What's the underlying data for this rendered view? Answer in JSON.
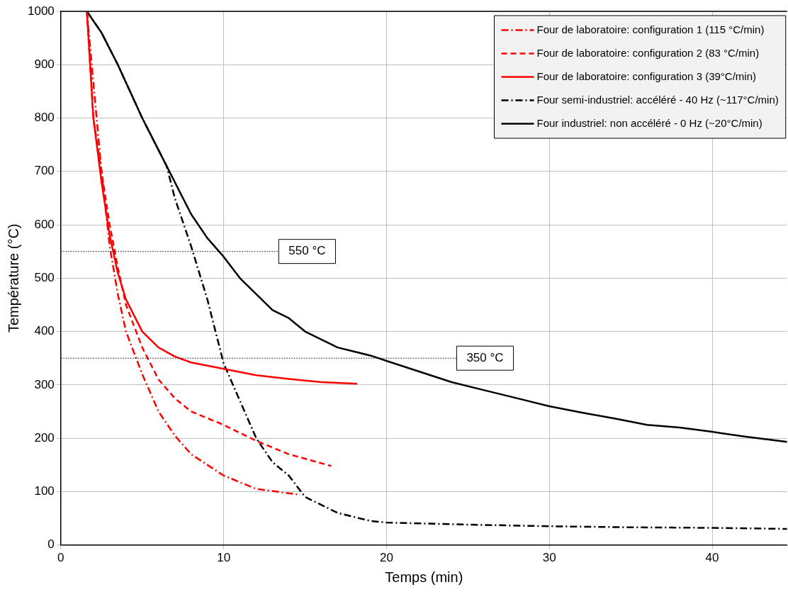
{
  "chart_data": {
    "type": "line",
    "xlabel": "Temps (min)",
    "ylabel": "Température (°C)",
    "xlim": [
      0,
      44.6
    ],
    "xticks": [
      0,
      10,
      20,
      30,
      40
    ],
    "ylim": [
      0,
      1000
    ],
    "yticks": [
      0,
      100,
      200,
      300,
      400,
      500,
      600,
      700,
      800,
      900,
      1000
    ],
    "grid": true,
    "legend": "top right",
    "marker": "none",
    "series": [
      {
        "name": "Four de laboratoire: configuration 1 (115 °C/min)",
        "color": "#ff0000",
        "line_style": "dashdot",
        "x": [
          1.6,
          2.5,
          3,
          3.5,
          4,
          5,
          6,
          7,
          8,
          10,
          12,
          14.7
        ],
        "values": [
          1000,
          700,
          560,
          470,
          400,
          320,
          250,
          205,
          170,
          130,
          105,
          94
        ]
      },
      {
        "name": "Four de laboratoire: configuration 2 (83 °C/min)",
        "color": "#ff0000",
        "line_style": "dashed",
        "x": [
          1.6,
          2,
          2.5,
          3,
          3.5,
          4,
          5,
          6,
          7,
          8,
          10,
          12,
          14,
          16.6
        ],
        "values": [
          1000,
          800,
          700,
          600,
          520,
          450,
          370,
          310,
          275,
          250,
          225,
          195,
          170,
          148
        ]
      },
      {
        "name": "Four de laboratoire: configuration 3 (39°C/min)",
        "color": "#ff0000",
        "line_style": "solid",
        "x": [
          1.6,
          2,
          2.5,
          3,
          3.5,
          4,
          5,
          6,
          7,
          8,
          10,
          12,
          14,
          16,
          18.2
        ],
        "values": [
          1000,
          800,
          680,
          580,
          510,
          460,
          400,
          370,
          353,
          342,
          330,
          318,
          311,
          305,
          302
        ]
      },
      {
        "name": "Four semi-industriel: accéléré - 40 Hz (~117°C/min)",
        "color": "#000000",
        "line_style": "dashdot",
        "x": [
          1.6,
          2.5,
          3.5,
          5,
          6,
          6.5,
          7,
          8,
          9,
          10,
          11,
          12,
          13,
          14,
          15,
          17,
          19,
          20,
          25,
          30,
          35,
          40,
          44.6
        ],
        "values": [
          1000,
          960,
          900,
          800,
          740,
          710,
          650,
          560,
          460,
          340,
          270,
          200,
          155,
          130,
          90,
          60,
          45,
          42,
          38,
          35,
          33,
          32,
          30
        ]
      },
      {
        "name": "Four industriel: non accéléré - 0 Hz (~20°C/min)",
        "color": "#000000",
        "line_style": "solid",
        "x": [
          1.6,
          2.5,
          3.5,
          5,
          6,
          7,
          8,
          9,
          10,
          11,
          12,
          13,
          14,
          15,
          17,
          19,
          20,
          22,
          24,
          26,
          28,
          30,
          32,
          34,
          36,
          38,
          40,
          42,
          44.6
        ],
        "values": [
          1000,
          960,
          900,
          800,
          740,
          680,
          620,
          575,
          540,
          500,
          470,
          440,
          425,
          400,
          370,
          355,
          345,
          325,
          305,
          290,
          275,
          260,
          248,
          237,
          225,
          220,
          212,
          203,
          193
        ]
      }
    ],
    "ref_lines": [
      {
        "axis": "y",
        "value": 550,
        "label": "550 °C",
        "color": "#000000",
        "line_style": "dotted"
      },
      {
        "axis": "y",
        "value": 350,
        "label": "350 °C",
        "color": "#000000",
        "line_style": "dotted"
      }
    ]
  }
}
